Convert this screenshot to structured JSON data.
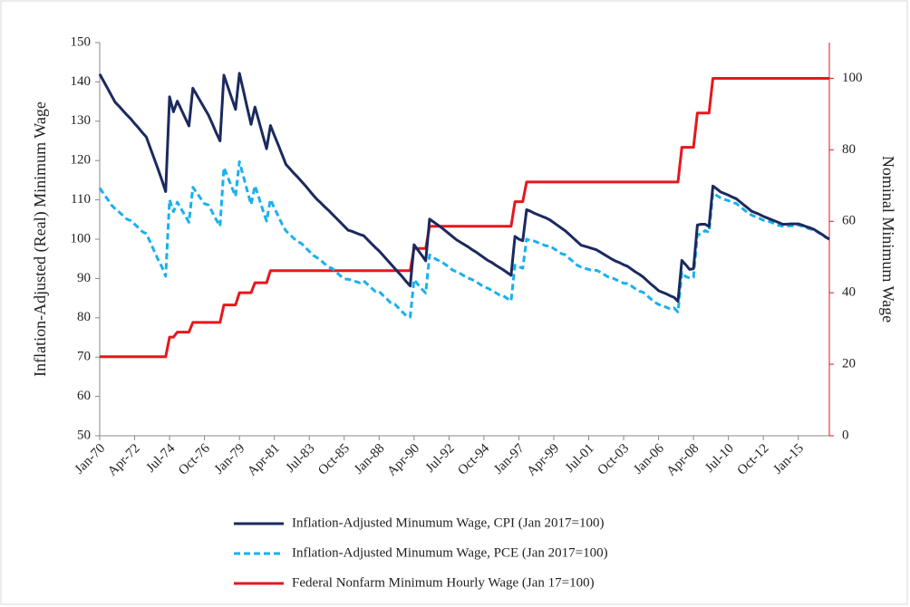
{
  "chart_data": {
    "type": "line",
    "ylabel": "Inflation-Adjusted (Real) Minimum Wage",
    "y2label": "Nominal Minimum Wage",
    "categories": [
      "Jan-70",
      null,
      null,
      null,
      null,
      null,
      null,
      null,
      null,
      "Apr-72",
      null,
      null,
      null,
      null,
      null,
      null,
      null,
      null,
      "Jul-74",
      null,
      null,
      null,
      null,
      null,
      null,
      null,
      null,
      "Oct-76",
      null,
      null,
      null,
      null,
      null,
      null,
      null,
      null,
      "Jan-79",
      null,
      null,
      null,
      null,
      null,
      null,
      null,
      null,
      "Apr-81",
      null,
      null,
      null,
      null,
      null,
      null,
      null,
      null,
      "Jul-83",
      null,
      null,
      null,
      null,
      null,
      null,
      null,
      null,
      "Oct-85",
      null,
      null,
      null,
      null,
      null,
      null,
      null,
      null,
      "Jan-88",
      null,
      null,
      null,
      null,
      null,
      null,
      null,
      null,
      "Apr-90",
      null,
      null,
      null,
      null,
      null,
      null,
      null,
      null,
      "Jul-92",
      null,
      null,
      null,
      null,
      null,
      null,
      null,
      null,
      "Oct-94",
      null,
      null,
      null,
      null,
      null,
      null,
      null,
      null,
      "Jan-97",
      null,
      null,
      null,
      null,
      null,
      null,
      null,
      null,
      "Apr-99",
      null,
      null,
      null,
      null,
      null,
      null,
      null,
      null,
      "Jul-01",
      null,
      null,
      null,
      null,
      null,
      null,
      null,
      null,
      "Oct-03",
      null,
      null,
      null,
      null,
      null,
      null,
      null,
      null,
      "Jan-06",
      null,
      null,
      null,
      null,
      null,
      null,
      null,
      null,
      "Apr-08",
      null,
      null,
      null,
      null,
      null,
      null,
      null,
      null,
      "Jul-10",
      null,
      null,
      null,
      null,
      null,
      null,
      null,
      null,
      "Oct-12",
      null,
      null,
      null,
      null,
      null,
      null,
      null,
      null,
      "Jan-15",
      null,
      null,
      null,
      null,
      null,
      null,
      null,
      null
    ],
    "series": [
      {
        "name": "Inflation-Adjusted Minumum Wage, CPI (Jan 2017=100)",
        "color": "#1b2a5e",
        "line_style": "solid",
        "axis": "y",
        "values": [
          142.0,
          140.2,
          138.4,
          136.6,
          134.8,
          133.8,
          132.7,
          131.6,
          130.6,
          129.4,
          128.3,
          127.1,
          126.0,
          123.3,
          120.6,
          117.9,
          115.1,
          112.1,
          136.2,
          132.4,
          135.1,
          133.0,
          130.9,
          128.8,
          138.4,
          136.7,
          135.0,
          133.3,
          131.6,
          129.4,
          127.1,
          125.0,
          141.7,
          138.8,
          135.9,
          133.0,
          142.2,
          137.9,
          133.5,
          129.2,
          133.6,
          130.1,
          126.5,
          123.0,
          128.9,
          126.4,
          124.0,
          121.5,
          119.0,
          117.9,
          116.8,
          115.8,
          114.7,
          113.6,
          112.4,
          111.2,
          110.1,
          109.2,
          108.2,
          107.3,
          106.3,
          105.3,
          104.3,
          103.3,
          102.3,
          102.0,
          101.6,
          101.2,
          100.9,
          99.9,
          98.9,
          97.9,
          97.0,
          95.9,
          94.8,
          93.7,
          92.6,
          91.5,
          90.4,
          89.2,
          88.1,
          98.6,
          97.2,
          95.9,
          94.5,
          105.1,
          104.4,
          103.7,
          103.0,
          102.2,
          101.4,
          100.6,
          99.8,
          99.2,
          98.6,
          98.0,
          97.3,
          96.7,
          96.0,
          95.3,
          94.6,
          94.1,
          93.4,
          92.8,
          92.2,
          91.5,
          90.8,
          100.7,
          100.0,
          99.6,
          107.5,
          107.1,
          106.6,
          106.2,
          105.8,
          105.4,
          104.9,
          104.2,
          103.5,
          102.8,
          102.1,
          101.2,
          100.3,
          99.4,
          98.5,
          98.2,
          97.9,
          97.6,
          97.3,
          96.7,
          96.1,
          95.5,
          94.9,
          94.4,
          94.0,
          93.5,
          93.1,
          92.4,
          91.7,
          91.1,
          90.4,
          89.5,
          88.6,
          87.8,
          86.9,
          86.5,
          86.1,
          85.6,
          85.2,
          84.2,
          94.6,
          93.5,
          92.3,
          92.5,
          103.6,
          103.8,
          103.8,
          103.2,
          113.5,
          112.8,
          112.0,
          111.6,
          111.2,
          110.7,
          110.3,
          109.5,
          108.7,
          107.9,
          107.1,
          106.7,
          106.3,
          105.8,
          105.4,
          105.0,
          104.6,
          104.2,
          103.8,
          103.8,
          103.9,
          103.9,
          103.9,
          103.6,
          103.2,
          102.9,
          102.5,
          101.9,
          101.3,
          100.6,
          100.0
        ]
      },
      {
        "name": "Inflation-Adjusted Minumum Wage, PCE (Jan 2017=100)",
        "color": "#1ab0ee",
        "line_style": "dashed",
        "axis": "y",
        "values": [
          113.0,
          111.6,
          110.2,
          108.7,
          107.7,
          106.9,
          106.0,
          105.1,
          104.7,
          103.8,
          102.9,
          101.9,
          101.4,
          99.3,
          97.1,
          94.9,
          93.0,
          90.6,
          110.0,
          107.0,
          109.4,
          107.7,
          106.0,
          104.3,
          113.2,
          111.8,
          110.4,
          109.0,
          108.7,
          106.9,
          105.0,
          103.3,
          118.2,
          115.8,
          113.3,
          110.9,
          119.7,
          116.1,
          112.4,
          108.8,
          113.6,
          110.6,
          107.5,
          104.6,
          110.1,
          107.9,
          105.9,
          103.8,
          102.1,
          101.2,
          100.2,
          99.4,
          98.9,
          97.9,
          96.9,
          95.9,
          95.3,
          94.6,
          93.7,
          92.9,
          92.5,
          91.6,
          90.7,
          89.9,
          89.8,
          89.6,
          89.2,
          88.9,
          89.4,
          88.5,
          87.6,
          86.7,
          86.7,
          85.7,
          84.8,
          83.8,
          83.5,
          82.5,
          81.5,
          80.5,
          80.2,
          89.7,
          88.5,
          87.3,
          86.3,
          96.0,
          95.3,
          94.7,
          94.3,
          93.6,
          92.9,
          92.1,
          91.7,
          91.2,
          90.6,
          90.1,
          89.7,
          89.2,
          88.5,
          87.9,
          87.5,
          87.0,
          86.4,
          85.8,
          85.6,
          84.9,
          84.3,
          93.4,
          93.0,
          92.6,
          100.0,
          99.6,
          99.5,
          99.1,
          98.7,
          98.3,
          98.3,
          97.6,
          97.0,
          96.3,
          96.0,
          95.1,
          94.3,
          93.4,
          92.9,
          92.6,
          92.3,
          92.0,
          92.1,
          91.6,
          91.0,
          90.4,
          90.2,
          89.7,
          89.3,
          88.8,
          88.7,
          88.1,
          87.4,
          86.8,
          86.5,
          85.7,
          84.8,
          84.0,
          83.4,
          83.0,
          82.7,
          82.2,
          82.5,
          81.5,
          91.6,
          90.5,
          90.1,
          90.3,
          101.1,
          101.3,
          102.2,
          101.7,
          111.8,
          111.1,
          110.5,
          110.1,
          109.8,
          109.3,
          109.1,
          108.3,
          107.5,
          106.7,
          106.1,
          105.7,
          105.3,
          104.8,
          104.7,
          104.3,
          103.9,
          103.5,
          103.3,
          103.3,
          103.4,
          103.4,
          103.6,
          103.3,
          102.9,
          102.6,
          102.4,
          101.8,
          101.2,
          100.5,
          100.0
        ]
      },
      {
        "name": "Federal Nonfarm Minimum Hourly Wage (Jan 17=100)",
        "color": "#e8161c",
        "line_style": "solid",
        "axis": "y2",
        "values": [
          22.1,
          22.1,
          22.1,
          22.1,
          22.1,
          22.1,
          22.1,
          22.1,
          22.1,
          22.1,
          22.1,
          22.1,
          22.1,
          22.1,
          22.1,
          22.1,
          22.1,
          22.1,
          27.6,
          27.6,
          29.0,
          29.0,
          29.0,
          29.0,
          31.7,
          31.7,
          31.7,
          31.7,
          31.7,
          31.7,
          31.7,
          31.7,
          36.6,
          36.6,
          36.6,
          36.6,
          40.0,
          40.0,
          40.0,
          40.0,
          42.8,
          42.8,
          42.8,
          42.8,
          46.2,
          46.2,
          46.2,
          46.2,
          46.2,
          46.2,
          46.2,
          46.2,
          46.2,
          46.2,
          46.2,
          46.2,
          46.2,
          46.2,
          46.2,
          46.2,
          46.2,
          46.2,
          46.2,
          46.2,
          46.2,
          46.2,
          46.2,
          46.2,
          46.2,
          46.2,
          46.2,
          46.2,
          46.2,
          46.2,
          46.2,
          46.2,
          46.2,
          46.2,
          46.2,
          46.2,
          46.2,
          52.4,
          52.4,
          52.4,
          52.4,
          58.6,
          58.6,
          58.6,
          58.6,
          58.6,
          58.6,
          58.6,
          58.6,
          58.6,
          58.6,
          58.6,
          58.6,
          58.6,
          58.6,
          58.6,
          58.6,
          58.6,
          58.6,
          58.6,
          58.6,
          58.6,
          58.6,
          65.5,
          65.5,
          65.5,
          71.0,
          71.0,
          71.0,
          71.0,
          71.0,
          71.0,
          71.0,
          71.0,
          71.0,
          71.0,
          71.0,
          71.0,
          71.0,
          71.0,
          71.0,
          71.0,
          71.0,
          71.0,
          71.0,
          71.0,
          71.0,
          71.0,
          71.0,
          71.0,
          71.0,
          71.0,
          71.0,
          71.0,
          71.0,
          71.0,
          71.0,
          71.0,
          71.0,
          71.0,
          71.0,
          71.0,
          71.0,
          71.0,
          71.0,
          71.0,
          80.7,
          80.7,
          80.7,
          80.7,
          90.3,
          90.3,
          90.3,
          90.3,
          100,
          100,
          100,
          100,
          100,
          100,
          100,
          100,
          100,
          100,
          100,
          100,
          100,
          100,
          100,
          100,
          100,
          100,
          100,
          100,
          100,
          100,
          100,
          100,
          100,
          100,
          100,
          100,
          100,
          100,
          100
        ]
      }
    ],
    "ylim": [
      50,
      150
    ],
    "yticks": [
      50,
      60,
      70,
      80,
      90,
      100,
      110,
      120,
      130,
      140,
      150
    ],
    "y2lim": [
      0,
      110
    ],
    "y2ticks": [
      0,
      20,
      40,
      60,
      80,
      100
    ],
    "grid": false,
    "legend": "bottom"
  }
}
